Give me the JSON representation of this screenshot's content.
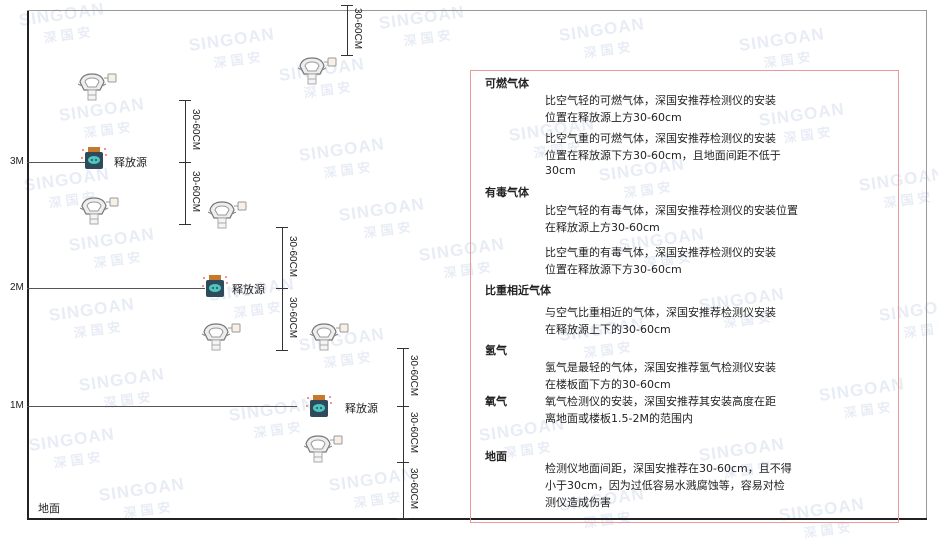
{
  "watermark": {
    "brand": "SINGOAN",
    "cn": "深国安"
  },
  "levels": {
    "m3": "3M",
    "m2": "2M",
    "m1": "1M",
    "ground": "地面"
  },
  "source_label": "释放源",
  "dimension_label": "30-60CM",
  "panel": {
    "combustible": {
      "title": "可燃气体",
      "lines": [
        "比空气轻的可燃气体，深国安推荐检测仪的安装",
        "位置在释放源上方30-60cm",
        "比空气重的可燃气体，深国安推荐检测仪的安装",
        "位置在释放源下方30-60cm，且地面间距不低于",
        "30cm"
      ]
    },
    "toxic": {
      "title": "有毒气体",
      "lines": [
        "比空气轻的有毒气体，深国安推荐检测仪的安装位置",
        "在释放源上方30-60cm",
        "比空气重的有毒气体，深国安推荐检测仪的安装",
        "位置在释放源下方30-60cm"
      ]
    },
    "similar": {
      "title": "比重相近气体",
      "lines": [
        "与空气比重相近的气体，深国安推荐检测仪安装",
        "在释放源上下的30-60cm"
      ]
    },
    "hydrogen": {
      "title": "氢气",
      "lines": [
        "氢气是最轻的气体，深国安推荐氢气检测仪安装",
        "在楼板面下方的30-60cm"
      ]
    },
    "oxygen": {
      "title": "氧气",
      "lines": [
        "氧气检测仪的安装，深国安推荐其安装高度在距",
        "离地面或楼板1.5-2M的范围内"
      ]
    },
    "ground": {
      "title": "地面",
      "lines": [
        "检测仪地面间距，深国安推荐在30-60cm，且不得",
        "小于30cm，因为过低容易水溅腐蚀等，容易对检",
        "测仪造成伤害"
      ]
    }
  },
  "colors": {
    "panel_border": "#e89a9a",
    "source_body": "#2f4a5a",
    "source_face": "#4ec6c0",
    "source_cap": "#c8782a"
  }
}
